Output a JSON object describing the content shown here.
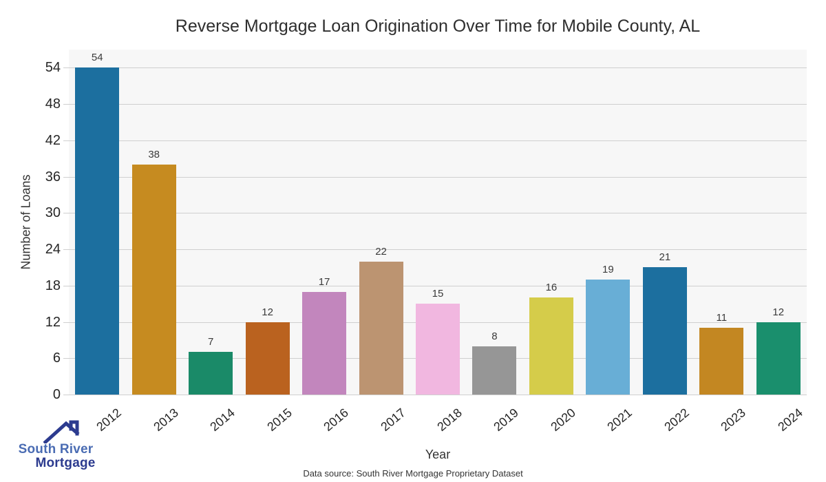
{
  "page": {
    "background": "#ffffff"
  },
  "title": "Reverse Mortgage Loan Origination Over Time for Mobile County, AL",
  "footer": {
    "source_text": "Data source: South River Mortgage Proprietary Dataset"
  },
  "logo": {
    "line1": "South River",
    "line2": "Mortgage",
    "icon": "house-roof-icon",
    "line1_color": "#4a6cb3",
    "line2_color": "#2c3b8f",
    "icon_color": "#2c3b8f"
  },
  "chart_data": {
    "type": "bar",
    "title": "Reverse Mortgage Loan Origination Over Time for Mobile County, AL",
    "xlabel": "Year",
    "ylabel": "Number of Loans",
    "categories": [
      "2012",
      "2013",
      "2014",
      "2015",
      "2016",
      "2017",
      "2018",
      "2019",
      "2020",
      "2021",
      "2022",
      "2023",
      "2024"
    ],
    "values": [
      54,
      38,
      7,
      12,
      17,
      22,
      15,
      8,
      16,
      19,
      21,
      11,
      12
    ],
    "bar_colors": [
      "#1c6f9f",
      "#c68b20",
      "#1a8a68",
      "#ba621f",
      "#c286bd",
      "#bc9471",
      "#f1b7e0",
      "#969696",
      "#d5cc4a",
      "#68aed6",
      "#1c6f9f",
      "#c38722",
      "#1a8f6d"
    ],
    "value_labels": true,
    "yticks": [
      0,
      6,
      12,
      18,
      24,
      30,
      36,
      42,
      48,
      54
    ],
    "ylim": [
      0,
      57
    ],
    "grid": true,
    "legend": "none",
    "plot_bg": "#f7f7f7",
    "gridline_color": "#cfcfcf"
  }
}
